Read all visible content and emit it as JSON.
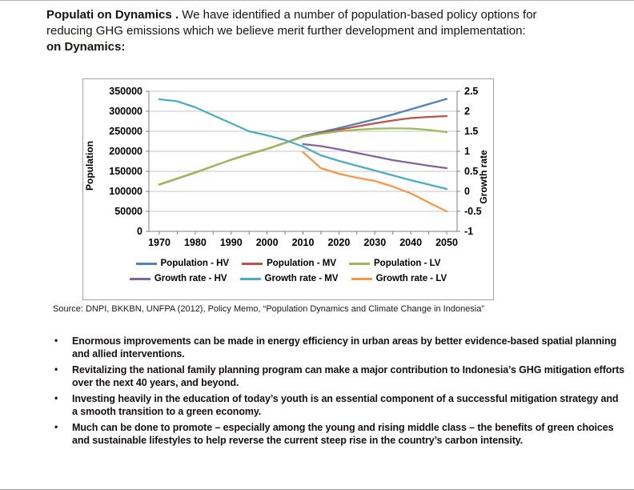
{
  "slide": {
    "title_lines": [
      {
        "bold": "Populati on Dynamics .",
        "regular": " We have identified a number of population-based policy options for"
      },
      {
        "bold": "",
        "regular": "reducing GHG emissions which we believe merit further development and implementation:"
      },
      {
        "bold": "on Dynamics:",
        "regular": ""
      }
    ],
    "source": "Source: DNPI, BKKBN, UNFPA (2012),  Policy Memo, “Population Dynamics and Climate Change in Indonesia”",
    "bullets": [
      "Enormous improvements can be made in energy efficiency in urban areas by better evidence-based spatial planning and allied interventions.",
      "Revitalizing the national family planning program can make a major contribution to Indonesia’s GHG mitigation efforts over the next 40 years, and beyond.",
      "Investing heavily in the education of today’s youth is an essential component of a successful mitigation strategy and a smooth transition to a green economy.",
      "Much can be done to promote – especially among the young and rising middle class – the benefits of green choices and sustainable lifestyles to help reverse the current steep rise in the country’s carbon intensity."
    ]
  },
  "chart_data": {
    "type": "line",
    "title": "",
    "xlabel": "",
    "ylabel_left": "Population",
    "ylabel_right": "Growth rate",
    "xlim": [
      1970,
      2050
    ],
    "ylim_left": [
      0,
      350000
    ],
    "ylim_right": [
      -1,
      2.5
    ],
    "x_ticks": [
      1970,
      1980,
      1990,
      2000,
      2010,
      2020,
      2030,
      2040,
      2050
    ],
    "y_ticks_left": [
      0,
      50000,
      100000,
      150000,
      200000,
      250000,
      300000,
      350000
    ],
    "y_ticks_right": [
      -1,
      -0.5,
      0,
      0.5,
      1,
      1.5,
      2,
      2.5
    ],
    "grid": true,
    "legend_position": "bottom",
    "x": [
      1970,
      1975,
      1980,
      1985,
      1990,
      1995,
      2000,
      2005,
      2010,
      2015,
      2020,
      2025,
      2030,
      2035,
      2040,
      2045,
      2050
    ],
    "series": [
      {
        "name": "Population - HV",
        "axis": "left",
        "color": "#4F81BD",
        "values": [
          117000,
          132000,
          147000,
          163000,
          179000,
          193000,
          206000,
          221000,
          238000,
          248000,
          258000,
          269000,
          280000,
          292000,
          305000,
          318000,
          331000
        ]
      },
      {
        "name": "Population - MV",
        "axis": "left",
        "color": "#C0504D",
        "values": [
          117000,
          132000,
          147000,
          163000,
          179000,
          193000,
          206000,
          221000,
          237000,
          246000,
          254000,
          262000,
          270000,
          277000,
          283000,
          286000,
          288000
        ]
      },
      {
        "name": "Population - LV",
        "axis": "left",
        "color": "#9BBB59",
        "values": [
          117000,
          132000,
          147000,
          163000,
          179000,
          193000,
          206000,
          221000,
          236000,
          244000,
          250000,
          254000,
          256500,
          257500,
          257000,
          253500,
          248000
        ]
      },
      {
        "name": "Growth rate - HV",
        "axis": "right",
        "color": "#8064A2",
        "values": [
          null,
          null,
          null,
          null,
          null,
          null,
          null,
          null,
          1.18,
          1.13,
          1.05,
          0.96,
          0.87,
          0.78,
          0.71,
          0.64,
          0.58
        ]
      },
      {
        "name": "Growth rate - MV",
        "axis": "right",
        "color": "#4BACC6",
        "values": [
          2.3,
          2.25,
          2.1,
          1.9,
          1.7,
          1.5,
          1.4,
          1.28,
          1.12,
          0.9,
          0.76,
          0.64,
          0.52,
          0.4,
          0.28,
          0.17,
          0.06
        ]
      },
      {
        "name": "Growth rate - LV",
        "axis": "right",
        "color": "#F79646",
        "values": [
          null,
          null,
          null,
          null,
          null,
          null,
          null,
          null,
          0.98,
          0.58,
          0.44,
          0.34,
          0.26,
          0.12,
          -0.05,
          -0.28,
          -0.5
        ]
      }
    ]
  }
}
